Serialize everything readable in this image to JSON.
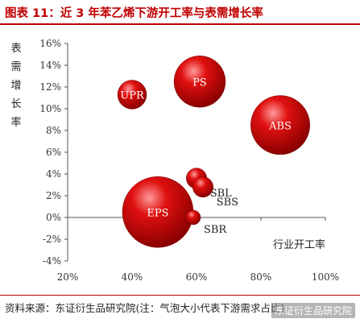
{
  "figure": {
    "title": "图表 11：近 3 年苯乙烯下游开工率与表需增长率",
    "source": "资料来源：东证衍生品研究院(注：气泡大小代表下游需求占比)",
    "watermark": "东证衍生品研究院"
  },
  "chart_data": {
    "type": "scatter",
    "variant": "bubble",
    "title": "",
    "xlabel": "行业开工率",
    "ylabel": "表需增长率",
    "xlim": [
      20,
      100
    ],
    "ylim": [
      -4,
      16
    ],
    "xticks": [
      "20%",
      "40%",
      "60%",
      "80%",
      "100%"
    ],
    "yticks": [
      "-4%",
      "-2%",
      "0%",
      "2%",
      "4%",
      "6%",
      "8%",
      "10%",
      "12%",
      "14%",
      "16%"
    ],
    "grid": false,
    "colors": {
      "bubble": "#d40000",
      "highlight": "#ff8080",
      "axis": "#555555"
    },
    "points": [
      {
        "label": "EPS",
        "x": 48,
        "y": 0.5,
        "size": 36
      },
      {
        "label": "PS",
        "x": 61,
        "y": 12.5,
        "size": 19
      },
      {
        "label": "ABS",
        "x": 86,
        "y": 8.5,
        "size": 25
      },
      {
        "label": "UPR",
        "x": 40,
        "y": 11.3,
        "size": 6
      },
      {
        "label": "SBL",
        "x": 60,
        "y": 3.6,
        "size": 3
      },
      {
        "label": "SBS",
        "x": 62,
        "y": 2.8,
        "size": 3
      },
      {
        "label": "SBR",
        "x": 59,
        "y": 0.0,
        "size": 1.5
      }
    ]
  }
}
